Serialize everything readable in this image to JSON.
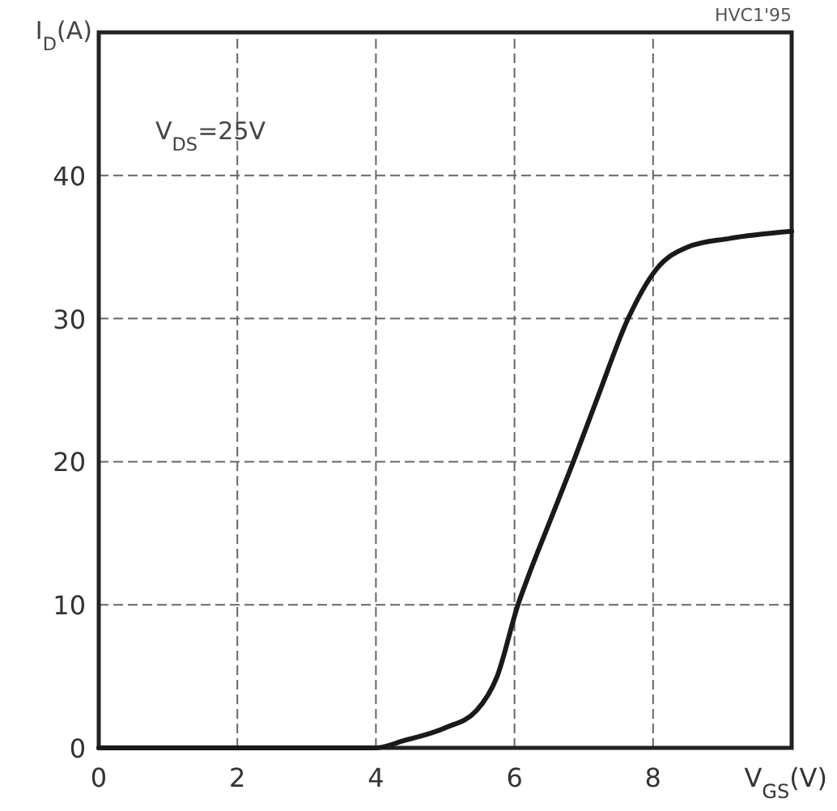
{
  "chart_data": {
    "type": "line",
    "xlabel": "V$_{GS}$(V)",
    "ylabel": "I$_{D}$(A)",
    "annotations": [
      "V$_{DS}$=25V",
      "HVC1'95"
    ],
    "x": [
      0,
      4.0,
      4.4,
      5.0,
      5.45,
      5.75,
      6.05,
      6.2,
      6.5,
      6.85,
      7.2,
      7.64,
      8.04,
      8.5,
      9.1,
      10
    ],
    "series": [
      {
        "color": "#1a1a1a",
        "values": [
          0,
          0,
          0.5,
          1.4,
          2.6,
          5,
          10,
          12,
          15.7,
          20,
          24.5,
          30,
          33.4,
          35,
          35.6,
          36.1
        ]
      }
    ],
    "xlim": [
      0,
      10
    ],
    "xticks": [
      0,
      2,
      4,
      6,
      8
    ],
    "ylim": [
      0,
      50
    ],
    "yticks": [
      0,
      10,
      20,
      30,
      40
    ],
    "grid": true,
    "marker": "none",
    "line_style": "solid"
  }
}
